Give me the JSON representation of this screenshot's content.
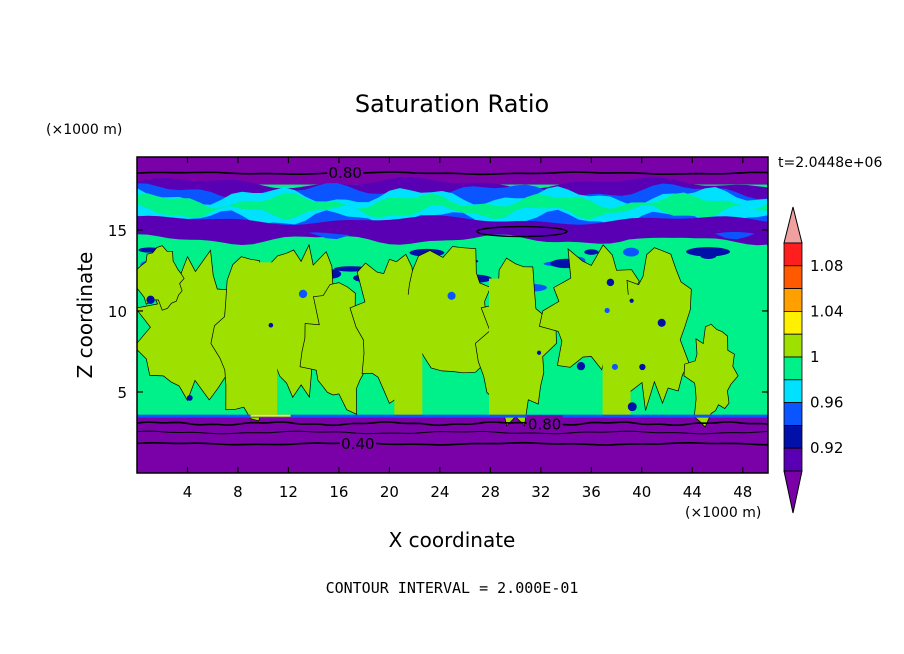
{
  "chart_data": {
    "type": "heatmap",
    "title": "Saturation Ratio",
    "xlabel": "X coordinate",
    "ylabel": "Z coordinate",
    "x_unit": "(×1000 m)",
    "y_unit": "(×1000 m)",
    "time_label": "t=2.0448e+06",
    "contour_interval_text": "CONTOUR INTERVAL = 2.000E-01",
    "xlim": [
      0,
      50
    ],
    "ylim": [
      0,
      19.5
    ],
    "x_ticks": [
      4,
      8,
      12,
      16,
      20,
      24,
      28,
      32,
      36,
      40,
      44,
      48
    ],
    "y_ticks": [
      5,
      10,
      15
    ],
    "colorbar": {
      "tick_labels": [
        "0.92",
        "0.96",
        "1",
        "1.04",
        "1.08"
      ],
      "levels": [
        0.9,
        0.92,
        0.94,
        0.96,
        0.98,
        1.0,
        1.02,
        1.04,
        1.06,
        1.08,
        1.1
      ],
      "colors": [
        "#7a00a8",
        "#5a00b4",
        "#0010a8",
        "#0a55ff",
        "#00e0ff",
        "#00f08a",
        "#9ee000",
        "#fff000",
        "#ffa000",
        "#ff5a00",
        "#ff1e1e",
        "#f0a0a0"
      ]
    },
    "layers": [
      {
        "z_range": [
          0,
          3.5
        ],
        "value_band": "below 0.90"
      },
      {
        "z_range": [
          3.5,
          15
        ],
        "value_band": "0.98-1.02",
        "patches": "1.00-1.02"
      },
      {
        "z_range": [
          15,
          17.8
        ],
        "value_band": "0.90-0.98"
      },
      {
        "z_range": [
          17.8,
          19.5
        ],
        "value_band": "below 0.90"
      }
    ],
    "contour_labels": [
      {
        "text": "0.80",
        "x": 16.5,
        "z": 18.5
      },
      {
        "text": "0.80",
        "x": 32.3,
        "z": 3.0
      },
      {
        "text": "0.40",
        "x": 17.5,
        "z": 1.8
      }
    ]
  }
}
